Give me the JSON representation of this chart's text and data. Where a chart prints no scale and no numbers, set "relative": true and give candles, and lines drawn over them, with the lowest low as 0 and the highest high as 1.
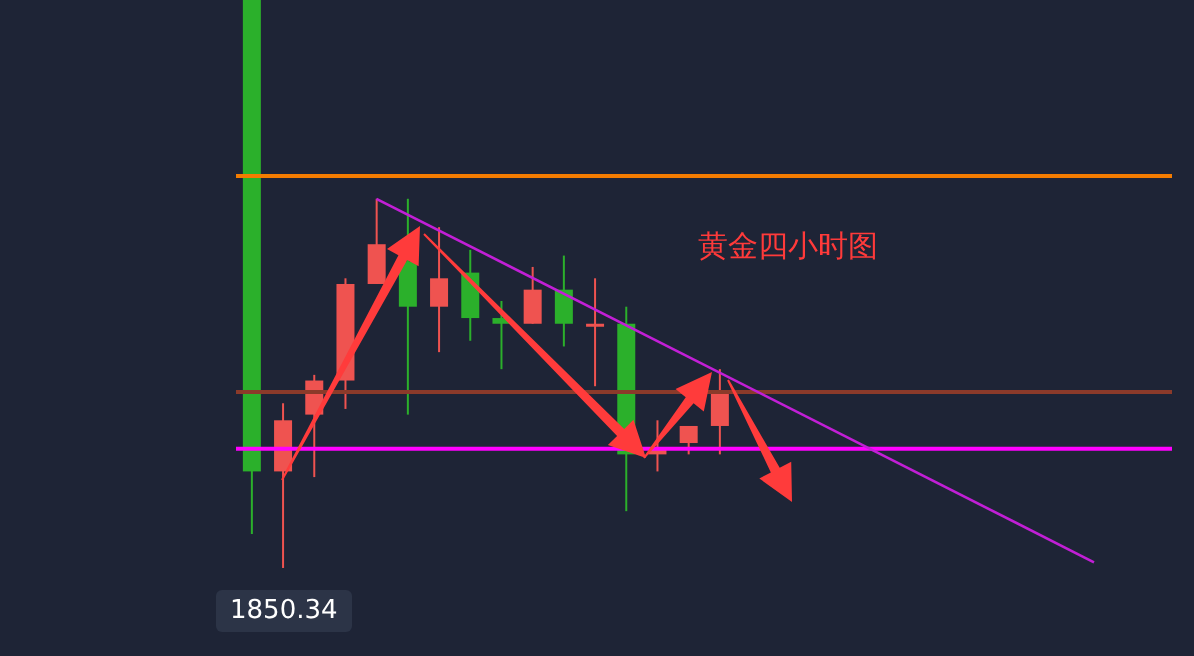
{
  "chart_data": {
    "type": "candlestick",
    "title": "黄金四小时图",
    "relative": true,
    "categories": [
      null,
      null,
      null,
      null,
      null,
      null,
      null,
      null,
      null,
      null,
      null,
      null,
      null,
      null,
      null,
      null,
      null,
      null,
      null,
      null,
      null,
      null,
      null,
      null,
      null,
      null,
      null,
      null,
      null,
      null
    ],
    "ohlc": [
      [
        1,
        1,
        0.06,
        0.17
      ],
      [
        0.17,
        0.29,
        0,
        0.26
      ],
      [
        0.27,
        0.34,
        0.16,
        0.33
      ],
      [
        0.33,
        0.51,
        0.28,
        0.5
      ],
      [
        0.5,
        0.65,
        0.5,
        0.57
      ],
      [
        0.54,
        0.65,
        0.27,
        0.46
      ],
      [
        0.46,
        0.6,
        0.38,
        0.51
      ],
      [
        0.52,
        0.56,
        0.4,
        0.44
      ],
      [
        0.44,
        0.47,
        0.35,
        0.43
      ],
      [
        0.43,
        0.53,
        0.43,
        0.49
      ],
      [
        0.49,
        0.55,
        0.39,
        0.43
      ],
      [
        0.43,
        0.51,
        0.32,
        0.43
      ],
      [
        0.43,
        0.46,
        0.1,
        0.2
      ],
      [
        0.2,
        0.26,
        0.17,
        0.21
      ],
      [
        0.22,
        0.25,
        0.2,
        0.25
      ],
      [
        0.25,
        0.35,
        0.2,
        0.31
      ],
      null,
      null,
      null,
      null,
      null,
      null,
      null,
      null,
      null,
      null,
      null,
      null,
      null,
      null
    ],
    "colors": [
      "#2bb02b",
      "#ef5350",
      "#ef5350",
      "#ef5350",
      "#ef5350",
      "#2bb02b",
      "#ef5350",
      "#2bb02b",
      "#2bb02b",
      "#ef5350",
      "#2bb02b",
      "#ef5350",
      "#2bb02b",
      "#ef5350",
      "#ef5350",
      "#ef5350",
      null,
      null,
      null,
      null,
      null,
      null,
      null,
      null,
      null,
      null,
      null,
      null,
      null,
      null
    ],
    "series": [
      {
        "type": "line",
        "color": "#c21fd6",
        "values": [
          null,
          null,
          null,
          null,
          0.65,
          null,
          null,
          null,
          null,
          null,
          null,
          null,
          null,
          null,
          null,
          null,
          null,
          null,
          null,
          null,
          null,
          null,
          null,
          null,
          null,
          null,
          null,
          0.01,
          null,
          null
        ]
      }
    ],
    "ref_lines": [
      {
        "axis": "y",
        "value": 0.69,
        "color": "#f57c00"
      },
      {
        "axis": "y",
        "value": 0.31,
        "color": "#8b3a2a"
      },
      {
        "axis": "y",
        "value": 0.21,
        "color": "#ff00ff"
      }
    ],
    "annotations": [
      "1850.34"
    ]
  }
}
